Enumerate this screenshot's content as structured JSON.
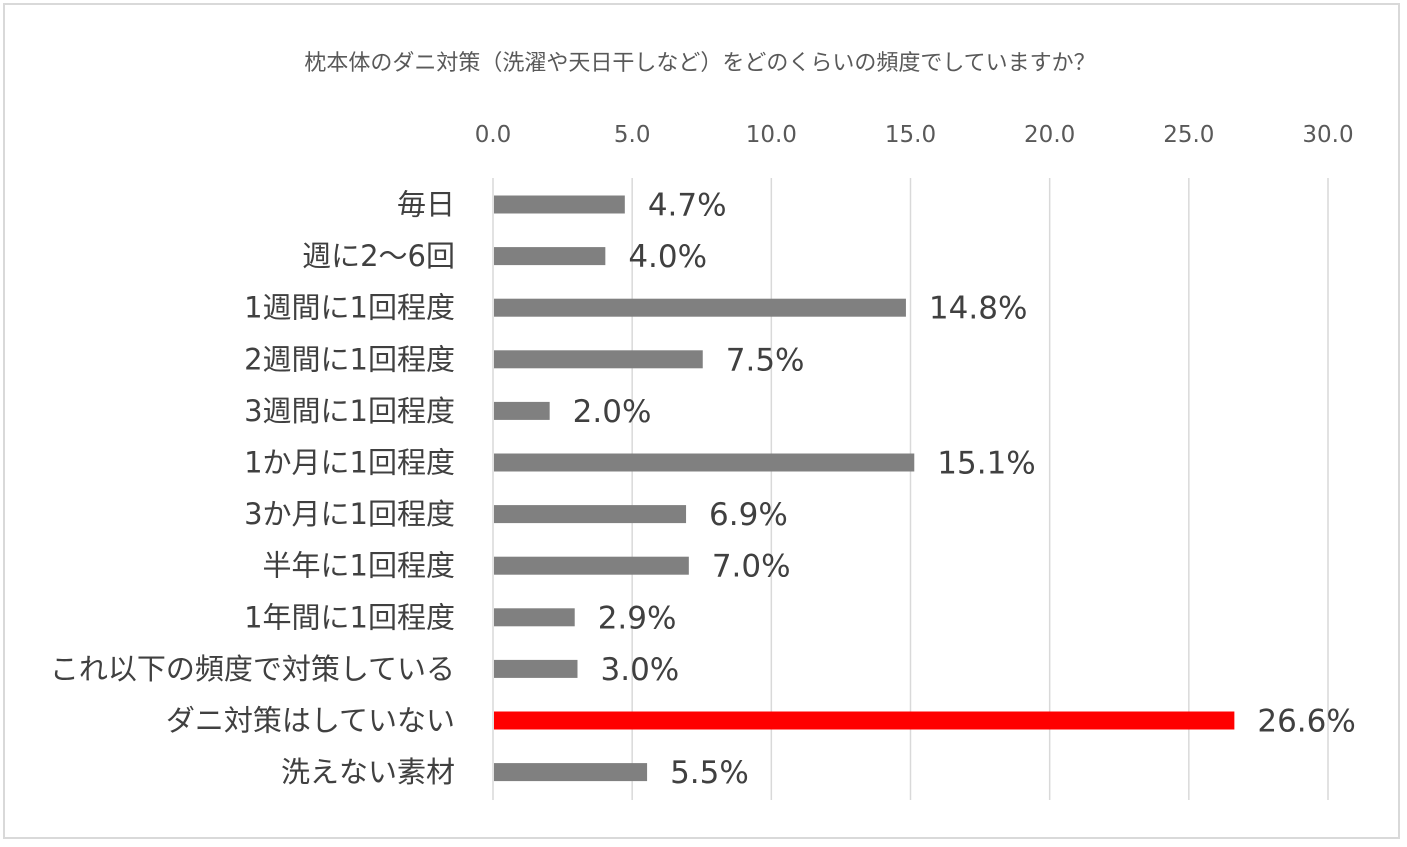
{
  "chart_data": {
    "type": "bar",
    "orientation": "horizontal",
    "title": "枕本体のダニ対策（洗濯や天日干しなど）をどのくらいの頻度でしていますか？",
    "xlabel": "",
    "ylabel": "",
    "xlim": [
      0,
      30
    ],
    "x_ticks": [
      0,
      5,
      10,
      15,
      20,
      25,
      30
    ],
    "x_tick_labels": [
      "0.0",
      "5.0",
      "10.0",
      "15.0",
      "20.0",
      "25.0",
      "30.0"
    ],
    "x_axis_position": "top",
    "grid": true,
    "legend": "none",
    "categories": [
      "毎日",
      "週に2～6回",
      "1週間に1回程度",
      "2週間に1回程度",
      "3週間に1回程度",
      "1か月に1回程度",
      "3か月に1回程度",
      "半年に1回程度",
      "1年間に1回程度",
      "これ以下の頻度で対策している",
      "ダニ対策はしていない",
      "洗えない素材"
    ],
    "values": [
      4.7,
      4.0,
      14.8,
      7.5,
      2.0,
      15.1,
      6.9,
      7.0,
      2.9,
      3.0,
      26.6,
      5.5
    ],
    "value_labels": [
      "4.7%",
      "4.0%",
      "14.8%",
      "7.5%",
      "2.0%",
      "15.1%",
      "6.9%",
      "7.0%",
      "2.9%",
      "3.0%",
      "26.6%",
      "5.5%"
    ],
    "colors": {
      "default": "#808080",
      "highlight": "#ff0000",
      "grid": "#d9d9d9"
    },
    "highlight_index": 10
  }
}
